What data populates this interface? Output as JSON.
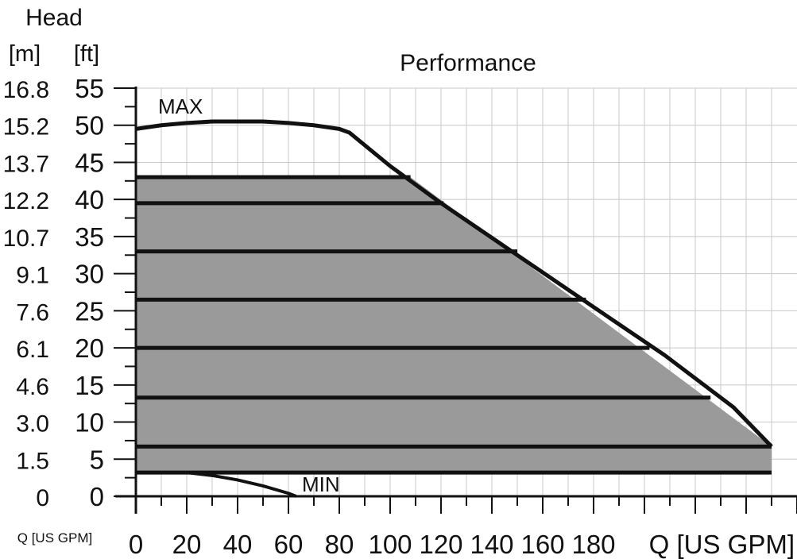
{
  "chart_data": {
    "type": "area",
    "title": "Performance",
    "y_axis_title": "Head",
    "y_unit_m": "[m]",
    "y_unit_ft": "[ft]",
    "y_ticks_ft": [
      "0",
      "5",
      "10",
      "15",
      "20",
      "25",
      "30",
      "35",
      "40",
      "45",
      "50",
      "55"
    ],
    "y_ticks_m": [
      "0",
      "1.5",
      "3.0",
      "4.6",
      "6.1",
      "7.6",
      "9.1",
      "10.7",
      "12.2",
      "13.7",
      "15.2",
      "16.8"
    ],
    "x_ticks": [
      "0",
      "20",
      "40",
      "60",
      "80",
      "100",
      "120",
      "140",
      "160",
      "180"
    ],
    "xlabel": "Q [US GPM]",
    "xlabel_left": "Q [US GPM]",
    "xlim": [
      0,
      260
    ],
    "ylim": [
      0,
      55
    ],
    "grid": true,
    "curve_labels": {
      "max": "MAX",
      "min": "MIN"
    },
    "max_curve": {
      "x": [
        0,
        10,
        20,
        30,
        40,
        50,
        60,
        70,
        80,
        84,
        100,
        120,
        150,
        180,
        208,
        235,
        250
      ],
      "y": [
        49.5,
        50.0,
        50.3,
        50.5,
        50.5,
        50.5,
        50.3,
        50.0,
        49.5,
        49.0,
        44.5,
        39.5,
        32.5,
        25.5,
        19.0,
        12.0,
        6.7
      ]
    },
    "min_curve": {
      "x": [
        0,
        20,
        30,
        40,
        50,
        60,
        63
      ],
      "y": [
        3.2,
        3.2,
        2.8,
        2.2,
        1.4,
        0.4,
        0
      ]
    },
    "shaded_region": {
      "x": [
        0,
        108,
        250,
        250,
        0
      ],
      "y": [
        43,
        43,
        6.7,
        3.2,
        3.2
      ]
    },
    "speed_lines": [
      {
        "y": 43,
        "x_end": 108
      },
      {
        "y": 39.5,
        "x_end": 121
      },
      {
        "y": 33,
        "x_end": 150
      },
      {
        "y": 26.5,
        "x_end": 177
      },
      {
        "y": 20,
        "x_end": 202
      },
      {
        "y": 13.3,
        "x_end": 226
      },
      {
        "y": 6.7,
        "x_end": 250
      },
      {
        "y": 3.2,
        "x_end": 250
      }
    ]
  }
}
